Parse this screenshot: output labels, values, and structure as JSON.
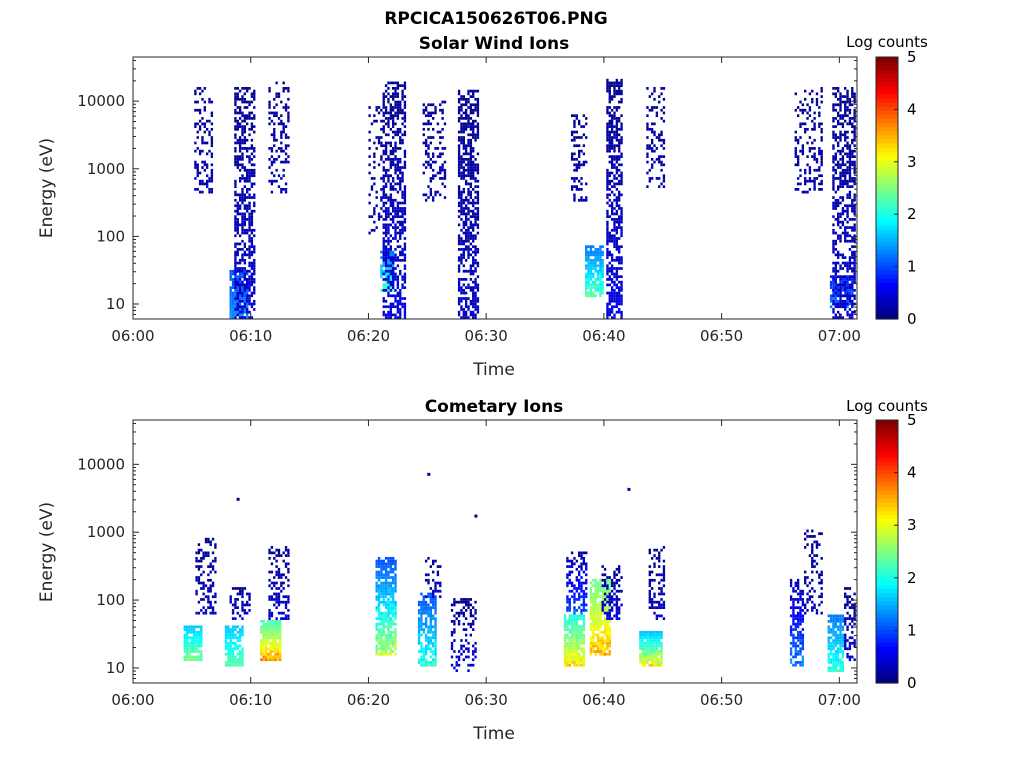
{
  "figure": {
    "filename_title": "RPCICA150626T06.PNG"
  },
  "chart_data": [
    {
      "type": "heatmap",
      "title": "Solar Wind Ions",
      "xlabel": "Time",
      "ylabel": "Energy (eV)",
      "x_ticks": [
        "06:00",
        "06:10",
        "06:20",
        "06:30",
        "06:40",
        "06:50",
        "07:00"
      ],
      "x_range_minutes": [
        0,
        61.5
      ],
      "y_scale": "log",
      "y_ticks": [
        "10",
        "100",
        "1000",
        "10000"
      ],
      "y_range": [
        6,
        45000
      ],
      "colorbar": {
        "label": "Log counts",
        "range": [
          0,
          5
        ],
        "ticks": [
          "0",
          "1",
          "2",
          "3",
          "4",
          "5"
        ]
      },
      "blobs": [
        {
          "t0": 5.2,
          "t1": 6.8,
          "e0": 400,
          "e1": 15000,
          "c0": 0.1,
          "c1": 0.3,
          "density": 0.35
        },
        {
          "t0": 8.2,
          "t1": 9.6,
          "e0": 6,
          "e1": 30,
          "c0": 1.0,
          "c1": 1.4,
          "density": 0.9
        },
        {
          "t0": 8.6,
          "t1": 10.2,
          "e0": 6,
          "e1": 15000,
          "c0": 0.1,
          "c1": 0.5,
          "density": 0.55
        },
        {
          "t0": 11.5,
          "t1": 13.2,
          "e0": 400,
          "e1": 18000,
          "c0": 0.1,
          "c1": 0.3,
          "density": 0.3
        },
        {
          "t0": 20.0,
          "t1": 21.0,
          "e0": 100,
          "e1": 10000,
          "c0": 0.1,
          "c1": 0.3,
          "density": 0.25
        },
        {
          "t0": 21.0,
          "t1": 22.0,
          "e0": 15,
          "e1": 60,
          "c0": 1.2,
          "c1": 2.4,
          "density": 0.8
        },
        {
          "t0": 21.2,
          "t1": 23.0,
          "e0": 6,
          "e1": 18000,
          "c0": 0.1,
          "c1": 0.6,
          "density": 0.55
        },
        {
          "t0": 24.6,
          "t1": 26.5,
          "e0": 300,
          "e1": 10000,
          "c0": 0.1,
          "c1": 0.3,
          "density": 0.3
        },
        {
          "t0": 27.6,
          "t1": 29.2,
          "e0": 6,
          "e1": 14000,
          "c0": 0.1,
          "c1": 0.4,
          "density": 0.6
        },
        {
          "t0": 37.2,
          "t1": 38.6,
          "e0": 300,
          "e1": 6000,
          "c0": 0.1,
          "c1": 0.3,
          "density": 0.3
        },
        {
          "t0": 38.4,
          "t1": 40.0,
          "e0": 12,
          "e1": 70,
          "c0": 1.2,
          "c1": 2.6,
          "density": 0.8
        },
        {
          "t0": 40.2,
          "t1": 41.6,
          "e0": 6,
          "e1": 20000,
          "c0": 0.1,
          "c1": 0.6,
          "density": 0.6
        },
        {
          "t0": 43.6,
          "t1": 45.2,
          "e0": 500,
          "e1": 15000,
          "c0": 0.1,
          "c1": 0.3,
          "density": 0.3
        },
        {
          "t0": 56.2,
          "t1": 58.6,
          "e0": 400,
          "e1": 16000,
          "c0": 0.1,
          "c1": 0.3,
          "density": 0.3
        },
        {
          "t0": 59.2,
          "t1": 61.2,
          "e0": 8,
          "e1": 25,
          "c0": 0.8,
          "c1": 1.4,
          "density": 0.7
        },
        {
          "t0": 59.4,
          "t1": 61.4,
          "e0": 6,
          "e1": 15000,
          "c0": 0.1,
          "c1": 0.5,
          "density": 0.55
        }
      ]
    },
    {
      "type": "heatmap",
      "title": "Cometary Ions",
      "xlabel": "Time",
      "ylabel": "Energy (eV)",
      "x_ticks": [
        "06:00",
        "06:10",
        "06:20",
        "06:30",
        "06:40",
        "06:50",
        "07:00"
      ],
      "x_range_minutes": [
        0,
        61.5
      ],
      "y_scale": "log",
      "y_ticks": [
        "10",
        "100",
        "1000",
        "10000"
      ],
      "y_range": [
        6,
        45000
      ],
      "colorbar": {
        "label": "Log counts",
        "range": [
          0,
          5
        ],
        "ticks": [
          "0",
          "1",
          "2",
          "3",
          "4",
          "5"
        ]
      },
      "blobs": [
        {
          "t0": 4.3,
          "t1": 5.8,
          "e0": 12,
          "e1": 40,
          "c0": 1.6,
          "c1": 2.8,
          "density": 0.85
        },
        {
          "t0": 5.3,
          "t1": 7.0,
          "e0": 60,
          "e1": 800,
          "c0": 0.1,
          "c1": 0.4,
          "density": 0.4
        },
        {
          "t0": 7.8,
          "t1": 9.2,
          "e0": 10,
          "e1": 40,
          "c0": 1.6,
          "c1": 2.5,
          "density": 0.8
        },
        {
          "t0": 8.2,
          "t1": 9.8,
          "e0": 50,
          "e1": 150,
          "c0": 0.1,
          "c1": 0.5,
          "density": 0.4
        },
        {
          "t0": 10.8,
          "t1": 12.4,
          "e0": 12,
          "e1": 50,
          "c0": 2.2,
          "c1": 4.0,
          "density": 0.9
        },
        {
          "t0": 11.5,
          "t1": 13.2,
          "e0": 50,
          "e1": 600,
          "c0": 0.1,
          "c1": 0.5,
          "density": 0.4
        },
        {
          "t0": 20.6,
          "t1": 22.2,
          "e0": 15,
          "e1": 400,
          "c0": 1.0,
          "c1": 3.2,
          "density": 0.8
        },
        {
          "t0": 24.2,
          "t1": 25.6,
          "e0": 10,
          "e1": 120,
          "c0": 1.0,
          "c1": 2.4,
          "density": 0.7
        },
        {
          "t0": 24.8,
          "t1": 26.0,
          "e0": 100,
          "e1": 400,
          "c0": 0.1,
          "c1": 0.4,
          "density": 0.35
        },
        {
          "t0": 27.0,
          "t1": 29.0,
          "e0": 8,
          "e1": 100,
          "c0": 0.1,
          "c1": 0.6,
          "density": 0.4
        },
        {
          "t0": 36.6,
          "t1": 38.4,
          "e0": 10,
          "e1": 60,
          "c0": 2.0,
          "c1": 3.6,
          "density": 0.9
        },
        {
          "t0": 36.8,
          "t1": 38.6,
          "e0": 60,
          "e1": 500,
          "c0": 0.2,
          "c1": 1.2,
          "density": 0.5
        },
        {
          "t0": 38.8,
          "t1": 40.6,
          "e0": 15,
          "e1": 200,
          "c0": 2.4,
          "c1": 3.8,
          "density": 0.85
        },
        {
          "t0": 39.8,
          "t1": 41.6,
          "e0": 50,
          "e1": 300,
          "c0": 0.1,
          "c1": 0.6,
          "density": 0.45
        },
        {
          "t0": 43.0,
          "t1": 45.0,
          "e0": 10,
          "e1": 35,
          "c0": 1.5,
          "c1": 3.6,
          "density": 0.9
        },
        {
          "t0": 43.8,
          "t1": 45.2,
          "e0": 50,
          "e1": 600,
          "c0": 0.1,
          "c1": 0.4,
          "density": 0.4
        },
        {
          "t0": 55.8,
          "t1": 57.0,
          "e0": 10,
          "e1": 200,
          "c0": 0.2,
          "c1": 1.6,
          "density": 0.6
        },
        {
          "t0": 57.0,
          "t1": 58.6,
          "e0": 60,
          "e1": 1000,
          "c0": 0.1,
          "c1": 0.3,
          "density": 0.35
        },
        {
          "t0": 59.0,
          "t1": 60.4,
          "e0": 8,
          "e1": 60,
          "c0": 1.2,
          "c1": 2.4,
          "density": 0.8
        },
        {
          "t0": 60.4,
          "t1": 61.4,
          "e0": 12,
          "e1": 150,
          "c0": 0.1,
          "c1": 0.5,
          "density": 0.45
        }
      ],
      "outliers": [
        {
          "t": 8.8,
          "e": 3000,
          "c": 0.2
        },
        {
          "t": 25.0,
          "e": 7000,
          "c": 0.2
        },
        {
          "t": 29.0,
          "e": 1700,
          "c": 0.2
        },
        {
          "t": 42.0,
          "e": 4200,
          "c": 0.2
        }
      ]
    }
  ]
}
